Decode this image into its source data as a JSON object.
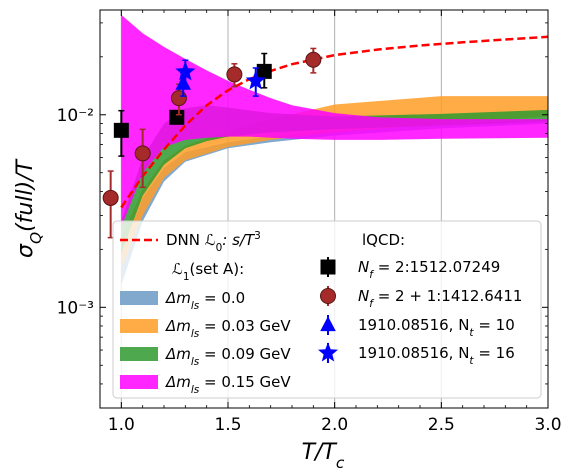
{
  "chart_data": {
    "type": "area",
    "xlabel": "T/T_c",
    "ylabel": "σ_Q(full)/T",
    "xlim": [
      0.9,
      3.0
    ],
    "ylim": [
      0.0003,
      0.035
    ],
    "yscale": "log",
    "grid": "vertical",
    "legend_position": "lower-right",
    "x_ticks": [
      1.0,
      1.5,
      2.0,
      2.5,
      3.0
    ],
    "x_tick_labels": [
      "1.0",
      "1.5",
      "2.0",
      "2.5",
      "3.0"
    ],
    "y_ticks": [
      0.001,
      0.01
    ],
    "y_tick_labels": [
      "10⁻³",
      "10⁻²"
    ],
    "lines": [
      {
        "name": "DNN ℒ₀: s/T³",
        "color": "#ff0000",
        "style": "dashed",
        "x": [
          1.0,
          1.1,
          1.2,
          1.3,
          1.4,
          1.5,
          1.6,
          1.7,
          1.8,
          2.0,
          2.2,
          2.4,
          2.6,
          2.8,
          3.0
        ],
        "y": [
          0.0033,
          0.0048,
          0.0066,
          0.0088,
          0.0112,
          0.0134,
          0.0153,
          0.0169,
          0.0183,
          0.0204,
          0.0218,
          0.0229,
          0.0238,
          0.0246,
          0.0254
        ]
      }
    ],
    "bands": [
      {
        "name": "Δm_ls = 0.0",
        "color": "#6b9ac4",
        "x": [
          1.0,
          1.1,
          1.2,
          1.3,
          1.5,
          1.7,
          2.0,
          2.5,
          3.0
        ],
        "lower": [
          0.0013,
          0.0028,
          0.0045,
          0.0057,
          0.0067,
          0.0072,
          0.0078,
          0.0085,
          0.009
        ],
        "upper": [
          0.0019,
          0.0037,
          0.0053,
          0.0064,
          0.0072,
          0.0077,
          0.0083,
          0.009,
          0.0095
        ]
      },
      {
        "name": "Δm_ls = 0.03 GeV",
        "color": "#ff9e27",
        "x": [
          1.0,
          1.1,
          1.2,
          1.3,
          1.5,
          1.7,
          2.0,
          2.5,
          3.0
        ],
        "lower": [
          0.0016,
          0.003,
          0.0047,
          0.0058,
          0.0068,
          0.0074,
          0.0081,
          0.009,
          0.0098
        ],
        "upper": [
          0.0023,
          0.0041,
          0.0058,
          0.0069,
          0.0082,
          0.0095,
          0.0113,
          0.0125,
          0.0125
        ]
      },
      {
        "name": "Δm_ls = 0.09 GeV",
        "color": "#2f9a2f",
        "x": [
          1.0,
          1.1,
          1.2,
          1.3,
          1.4,
          1.5,
          1.7,
          2.0,
          2.5,
          3.0
        ],
        "lower": [
          0.0019,
          0.0038,
          0.0055,
          0.0067,
          0.0073,
          0.0077,
          0.0081,
          0.0084,
          0.0088,
          0.0092
        ],
        "upper": [
          0.0028,
          0.006,
          0.009,
          0.0108,
          0.0112,
          0.0109,
          0.0102,
          0.0098,
          0.0101,
          0.0106
        ]
      },
      {
        "name": "Δm_ls = 0.15 GeV",
        "color": "#ff00ff",
        "x": [
          1.0,
          1.1,
          1.2,
          1.3,
          1.4,
          1.5,
          1.6,
          1.7,
          1.8,
          2.0,
          2.2,
          2.5,
          3.0
        ],
        "lower": [
          0.0026,
          0.005,
          0.0068,
          0.0074,
          0.0076,
          0.0077,
          0.0077,
          0.0076,
          0.0075,
          0.0074,
          0.0074,
          0.0075,
          0.0076
        ],
        "upper": [
          0.033,
          0.0265,
          0.0225,
          0.0195,
          0.017,
          0.015,
          0.0135,
          0.0122,
          0.0112,
          0.0102,
          0.0097,
          0.0095,
          0.0095
        ]
      }
    ],
    "points": [
      {
        "name": "N_f = 2:1512.07249",
        "marker": "square",
        "color": "#000000",
        "x": [
          1.0,
          1.26,
          1.67
        ],
        "y": [
          0.0083,
          0.0097,
          0.0168
        ],
        "err_low": [
          0.0022,
          0.0,
          0.003
        ],
        "err_high": [
          0.0022,
          0.0,
          0.004
        ]
      },
      {
        "name": "N_f = 2+1:1412.6411",
        "marker": "circle",
        "color": "#a52a2a",
        "x": [
          0.95,
          1.1,
          1.27,
          1.53,
          1.9
        ],
        "y": [
          0.0037,
          0.0063,
          0.0122,
          0.0162,
          0.0193
        ],
        "err_low": [
          0.0014,
          0.0021,
          0.0022,
          0.0022,
          0.0028
        ],
        "err_high": [
          0.0014,
          0.0021,
          0.0022,
          0.0022,
          0.0028
        ]
      },
      {
        "name": "1910.08516, N_t = 10",
        "marker": "triangle",
        "color": "#0000ff",
        "x": [
          1.29
        ],
        "y": [
          0.0145
        ],
        "err_low": [
          0.002
        ],
        "err_high": [
          0.002
        ]
      },
      {
        "name": "1910.08516, N_t = 16",
        "marker": "star",
        "color": "#0000ff",
        "x": [
          1.3,
          1.63
        ],
        "y": [
          0.0167,
          0.015
        ],
        "err_low": [
          0.0025,
          0.0025
        ],
        "err_high": [
          0.0025,
          0.0025
        ]
      }
    ],
    "legend": {
      "subtitle_left": "ℒ₁(set A):",
      "subtitle_right": "lQCD:",
      "line_label_prefix": "DNN ",
      "line_label_L": "ℒ",
      "line_label_sub": "0",
      "line_label_rest": ": s/T",
      "line_label_sup": "3",
      "band_labels": [
        {
          "pre": "Δm",
          "sub": "ls",
          "post": " = 0.0"
        },
        {
          "pre": "Δm",
          "sub": "ls",
          "post": " = 0.03 GeV"
        },
        {
          "pre": "Δm",
          "sub": "ls",
          "post": " = 0.09 GeV"
        },
        {
          "pre": "Δm",
          "sub": "ls",
          "post": " = 0.15 GeV"
        }
      ],
      "point_labels": [
        {
          "pre": "N",
          "sub": "f",
          "post": " = 2:1512.07249"
        },
        {
          "pre": "N",
          "sub": "f",
          "post": " = 2 + 1:1412.6411"
        },
        {
          "pre": "1910.08516, N",
          "sub": "t",
          "post": " = 10"
        },
        {
          "pre": "1910.08516, N",
          "sub": "t",
          "post": " = 16"
        }
      ]
    }
  }
}
